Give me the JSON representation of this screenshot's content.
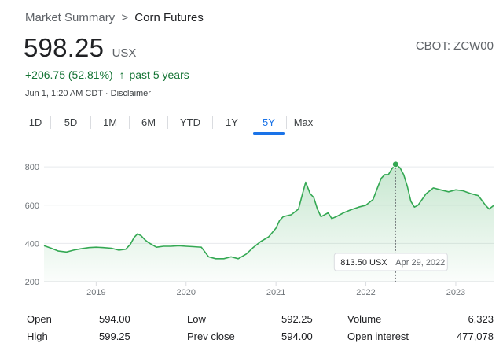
{
  "breadcrumb": {
    "parent": "Market Summary",
    "separator": ">",
    "current": "Corn Futures"
  },
  "quote": {
    "price": "598.25",
    "currency": "USX",
    "ticker": "CBOT: ZCW00",
    "change_value": "+206.75 (52.81%)",
    "change_arrow": "↑",
    "change_period": "past 5 years",
    "timestamp": "Jun 1, 1:20 AM CDT · Disclaimer"
  },
  "tabs": [
    {
      "label": "1D",
      "active": false
    },
    {
      "label": "5D",
      "active": false
    },
    {
      "label": "1M",
      "active": false
    },
    {
      "label": "6M",
      "active": false
    },
    {
      "label": "YTD",
      "active": false
    },
    {
      "label": "1Y",
      "active": false
    },
    {
      "label": "5Y",
      "active": true
    },
    {
      "label": "Max",
      "active": false
    }
  ],
  "colors": {
    "line": "#34a853",
    "positive_text": "#137333",
    "active_tab": "#1a73e8",
    "grid": "#e8eaed"
  },
  "chart_data": {
    "type": "area",
    "title": "",
    "xlabel": "",
    "ylabel": "",
    "ylim": [
      200,
      850
    ],
    "xlim": [
      2018.42,
      2023.42
    ],
    "yticks": [
      200,
      400,
      600,
      800
    ],
    "xticks": [
      {
        "x": 2019.0,
        "label": "2019"
      },
      {
        "x": 2020.0,
        "label": "2020"
      },
      {
        "x": 2021.0,
        "label": "2021"
      },
      {
        "x": 2022.0,
        "label": "2022"
      },
      {
        "x": 2023.0,
        "label": "2023"
      }
    ],
    "grid": "horizontal",
    "tooltip": {
      "value": "813.50 USX",
      "date": "Apr 29, 2022",
      "x": 2022.33,
      "y": 813.5
    },
    "series": [
      {
        "values": [
          [
            2018.42,
            388
          ],
          [
            2018.5,
            375
          ],
          [
            2018.58,
            360
          ],
          [
            2018.67,
            355
          ],
          [
            2018.75,
            365
          ],
          [
            2018.83,
            372
          ],
          [
            2018.92,
            378
          ],
          [
            2019.0,
            380
          ],
          [
            2019.08,
            378
          ],
          [
            2019.17,
            375
          ],
          [
            2019.25,
            365
          ],
          [
            2019.33,
            370
          ],
          [
            2019.38,
            395
          ],
          [
            2019.42,
            430
          ],
          [
            2019.46,
            450
          ],
          [
            2019.5,
            440
          ],
          [
            2019.54,
            420
          ],
          [
            2019.58,
            405
          ],
          [
            2019.67,
            380
          ],
          [
            2019.75,
            385
          ],
          [
            2019.83,
            385
          ],
          [
            2019.92,
            388
          ],
          [
            2020.0,
            385
          ],
          [
            2020.08,
            383
          ],
          [
            2020.17,
            380
          ],
          [
            2020.25,
            330
          ],
          [
            2020.33,
            320
          ],
          [
            2020.42,
            320
          ],
          [
            2020.5,
            330
          ],
          [
            2020.58,
            320
          ],
          [
            2020.67,
            345
          ],
          [
            2020.75,
            380
          ],
          [
            2020.83,
            410
          ],
          [
            2020.92,
            435
          ],
          [
            2021.0,
            480
          ],
          [
            2021.04,
            520
          ],
          [
            2021.08,
            540
          ],
          [
            2021.17,
            550
          ],
          [
            2021.25,
            580
          ],
          [
            2021.29,
            650
          ],
          [
            2021.33,
            720
          ],
          [
            2021.38,
            660
          ],
          [
            2021.42,
            640
          ],
          [
            2021.46,
            580
          ],
          [
            2021.5,
            540
          ],
          [
            2021.58,
            560
          ],
          [
            2021.62,
            530
          ],
          [
            2021.67,
            540
          ],
          [
            2021.75,
            560
          ],
          [
            2021.83,
            575
          ],
          [
            2021.92,
            590
          ],
          [
            2022.0,
            600
          ],
          [
            2022.08,
            630
          ],
          [
            2022.12,
            680
          ],
          [
            2022.17,
            740
          ],
          [
            2022.21,
            760
          ],
          [
            2022.25,
            760
          ],
          [
            2022.29,
            790
          ],
          [
            2022.33,
            813.5
          ],
          [
            2022.38,
            795
          ],
          [
            2022.42,
            760
          ],
          [
            2022.46,
            700
          ],
          [
            2022.5,
            620
          ],
          [
            2022.54,
            590
          ],
          [
            2022.58,
            600
          ],
          [
            2022.67,
            660
          ],
          [
            2022.75,
            690
          ],
          [
            2022.83,
            680
          ],
          [
            2022.92,
            670
          ],
          [
            2023.0,
            680
          ],
          [
            2023.08,
            675
          ],
          [
            2023.17,
            660
          ],
          [
            2023.25,
            650
          ],
          [
            2023.33,
            600
          ],
          [
            2023.37,
            580
          ],
          [
            2023.42,
            598.25
          ]
        ]
      }
    ]
  },
  "stats": [
    [
      {
        "label": "Open",
        "value": "594.00"
      },
      {
        "label": "Low",
        "value": "592.25"
      },
      {
        "label": "Volume",
        "value": "6,323"
      }
    ],
    [
      {
        "label": "High",
        "value": "599.25"
      },
      {
        "label": "Prev close",
        "value": "594.00"
      },
      {
        "label": "Open interest",
        "value": "477,078"
      }
    ]
  ]
}
